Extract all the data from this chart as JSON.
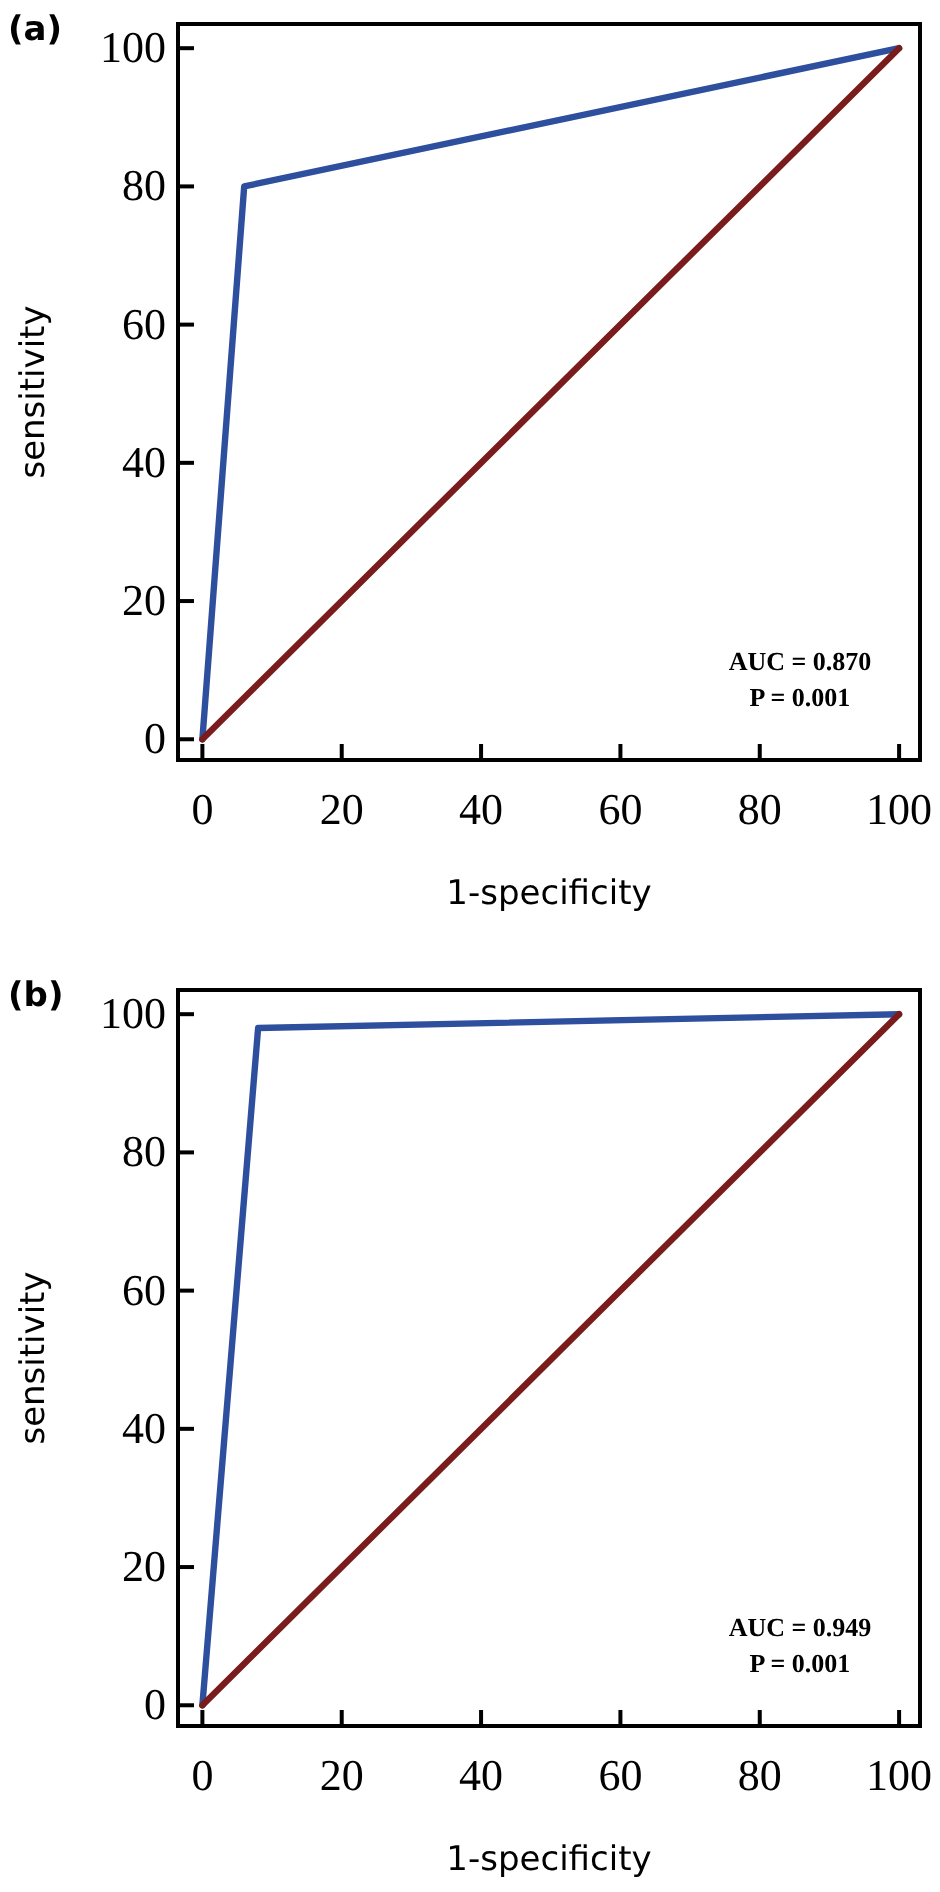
{
  "chart_data": [
    {
      "type": "line",
      "title": "(a)",
      "xlabel": "1-specificity",
      "ylabel": "sensitivity",
      "xlim": [
        -3.5,
        103
      ],
      "ylim": [
        -3,
        103.5
      ],
      "xticks": [
        0,
        20,
        40,
        60,
        80,
        100
      ],
      "yticks": [
        0,
        20,
        40,
        60,
        80,
        100
      ],
      "grid": false,
      "marker": "none",
      "line_style": "solid",
      "series": [
        {
          "color": "#2d4f9e",
          "x": [
            0,
            6,
            100
          ],
          "values": [
            0,
            80,
            100
          ]
        },
        {
          "color": "#7a1c1c",
          "x": [
            0,
            100
          ],
          "values": [
            0,
            100
          ]
        }
      ],
      "annotations": [
        "AUC = 0.870",
        "P = 0.001"
      ]
    },
    {
      "type": "line",
      "title": "(b)",
      "xlabel": "1-specificity",
      "ylabel": "sensitivity",
      "xlim": [
        -3.5,
        103
      ],
      "ylim": [
        -3,
        103.5
      ],
      "xticks": [
        0,
        20,
        40,
        60,
        80,
        100
      ],
      "yticks": [
        0,
        20,
        40,
        60,
        80,
        100
      ],
      "grid": false,
      "marker": "none",
      "line_style": "solid",
      "series": [
        {
          "color": "#2d4f9e",
          "x": [
            0,
            8,
            100
          ],
          "values": [
            0,
            98,
            100
          ]
        },
        {
          "color": "#7a1c1c",
          "x": [
            0,
            100
          ],
          "values": [
            0,
            100
          ]
        }
      ],
      "annotations": [
        "AUC = 0.949",
        "P = 0.001"
      ]
    }
  ]
}
